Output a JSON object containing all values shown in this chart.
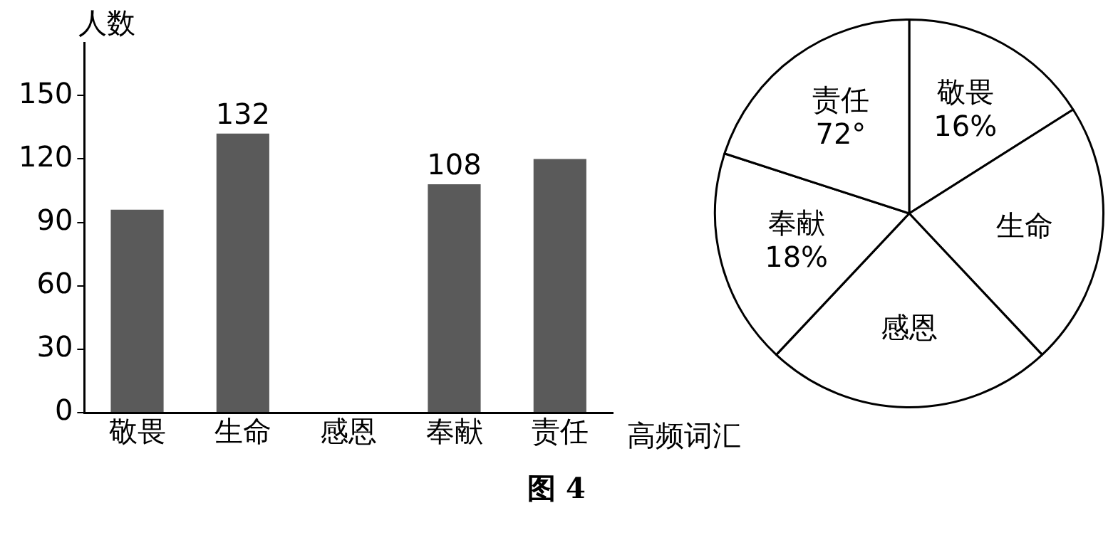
{
  "chart_data": [
    {
      "type": "bar",
      "categories": [
        "敬畏",
        "生命",
        "感恩",
        "奉献",
        "责任"
      ],
      "values": [
        96,
        132,
        null,
        108,
        120
      ],
      "color": "#5a5a5a",
      "ylabel": "人数",
      "xlabel": "高频词汇",
      "ylim": [
        0,
        175
      ],
      "yticks": [
        0,
        30,
        60,
        90,
        120,
        150
      ],
      "value_labels": [
        null,
        "132",
        null,
        "108",
        null
      ],
      "annotations": [
        "图 4"
      ]
    },
    {
      "type": "pie",
      "categories": [
        "敬畏",
        "生命",
        "感恩",
        "奉献",
        "责任"
      ],
      "values": [
        16,
        22,
        24,
        18,
        20
      ],
      "colors": [
        "#ffffff",
        "#ffffff",
        "#ffffff",
        "#ffffff",
        "#ffffff"
      ],
      "value_labels": [
        "16%",
        null,
        null,
        "18%",
        null
      ],
      "annotations": [
        {
          "text": "72°",
          "x": "责任"
        }
      ]
    }
  ]
}
